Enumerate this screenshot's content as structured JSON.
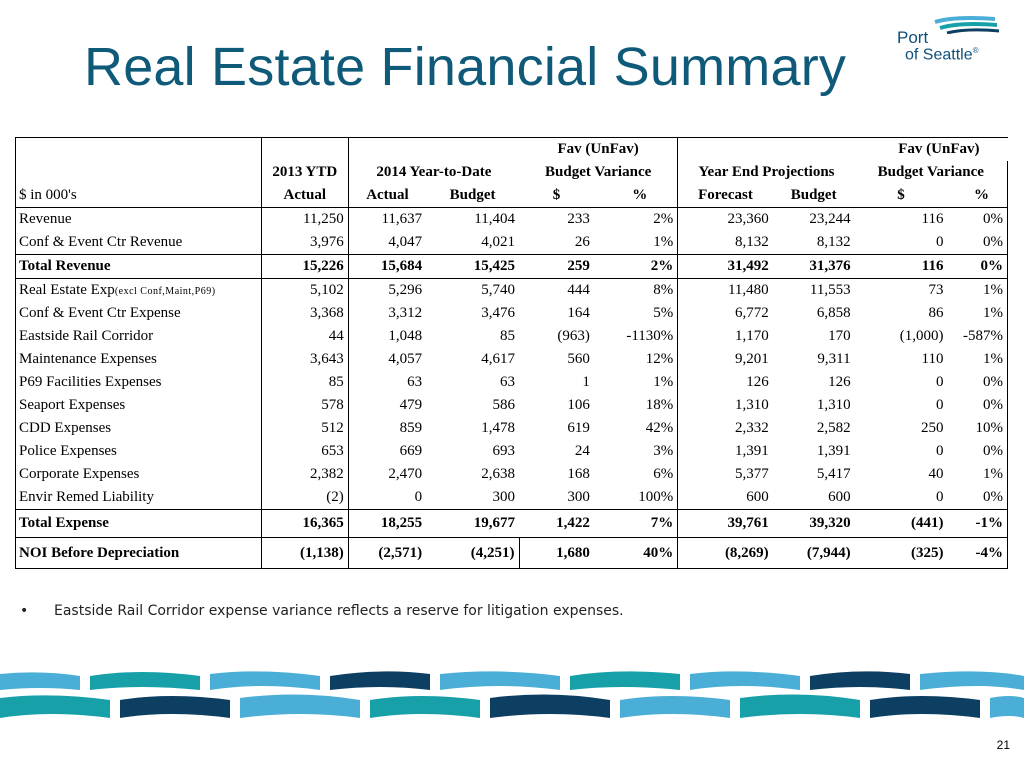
{
  "slide": {
    "title": "Real Estate Financial Summary",
    "page_number": "21",
    "bullet": "Eastside Rail Corridor expense variance reflects a reserve for litigation expenses."
  },
  "logo": {
    "line1": "Port",
    "line2": "of Seattle",
    "mark": "®"
  },
  "colors": {
    "title": "#0f5a78",
    "logo": "#0f4f7a",
    "wave_light": "#4baed6",
    "wave_teal": "#17a0a8",
    "wave_dark": "#0d3f63"
  },
  "table": {
    "header": {
      "fav1": "Fav (UnFav)",
      "fav2": "Fav (UnFav)",
      "ytd2013": "2013 YTD",
      "ytd2014": "2014 Year-to-Date",
      "budget_variance1": "Budget Variance",
      "year_end": "Year End Projections",
      "budget_variance2": "Budget Variance",
      "units": "$ in 000's",
      "actual2013": "Actual",
      "actual2014": "Actual",
      "budget2014": "Budget",
      "dollar1": "$",
      "pct1": "%",
      "forecast": "Forecast",
      "budget_ye": "Budget",
      "dollar2": "$",
      "pct2": "%"
    },
    "rows": [
      {
        "label": "Revenue",
        "vals": [
          "11,250",
          "11,637",
          "11,404",
          "233",
          "2%",
          "23,360",
          "23,244",
          "116",
          "0%"
        ]
      },
      {
        "label": "Conf & Event Ctr Revenue",
        "vals": [
          "3,976",
          "4,047",
          "4,021",
          "26",
          "1%",
          "8,132",
          "8,132",
          "0",
          "0%"
        ]
      },
      {
        "label": "Total Revenue",
        "vals": [
          "15,226",
          "15,684",
          "15,425",
          "259",
          "2%",
          "31,492",
          "31,376",
          "116",
          "0%"
        ]
      },
      {
        "label": "Real Estate Exp",
        "label_small": "(excl Conf,Maint,P69)",
        "vals": [
          "5,102",
          "5,296",
          "5,740",
          "444",
          "8%",
          "11,480",
          "11,553",
          "73",
          "1%"
        ]
      },
      {
        "label": "Conf & Event Ctr Expense",
        "vals": [
          "3,368",
          "3,312",
          "3,476",
          "164",
          "5%",
          "6,772",
          "6,858",
          "86",
          "1%"
        ]
      },
      {
        "label": "Eastside Rail Corridor",
        "vals": [
          "44",
          "1,048",
          "85",
          "(963)",
          "-1130%",
          "1,170",
          "170",
          "(1,000)",
          "-587%"
        ]
      },
      {
        "label": "Maintenance Expenses",
        "vals": [
          "3,643",
          "4,057",
          "4,617",
          "560",
          "12%",
          "9,201",
          "9,311",
          "110",
          "1%"
        ]
      },
      {
        "label": "P69 Facilities Expenses",
        "vals": [
          "85",
          "63",
          "63",
          "1",
          "1%",
          "126",
          "126",
          "0",
          "0%"
        ]
      },
      {
        "label": "Seaport Expenses",
        "vals": [
          "578",
          "479",
          "586",
          "106",
          "18%",
          "1,310",
          "1,310",
          "0",
          "0%"
        ]
      },
      {
        "label": "CDD Expenses",
        "vals": [
          "512",
          "859",
          "1,478",
          "619",
          "42%",
          "2,332",
          "2,582",
          "250",
          "10%"
        ]
      },
      {
        "label": "Police Expenses",
        "vals": [
          "653",
          "669",
          "693",
          "24",
          "3%",
          "1,391",
          "1,391",
          "0",
          "0%"
        ]
      },
      {
        "label": "Corporate Expenses",
        "vals": [
          "2,382",
          "2,470",
          "2,638",
          "168",
          "6%",
          "5,377",
          "5,417",
          "40",
          "1%"
        ]
      },
      {
        "label": "Envir Remed Liability",
        "vals": [
          "(2)",
          "0",
          "300",
          "300",
          "100%",
          "600",
          "600",
          "0",
          "0%"
        ]
      },
      {
        "label": "Total Expense",
        "vals": [
          "16,365",
          "18,255",
          "19,677",
          "1,422",
          "7%",
          "39,761",
          "39,320",
          "(441)",
          "-1%"
        ]
      },
      {
        "label": "NOI Before Depreciation",
        "vals": [
          "(1,138)",
          "(2,571)",
          "(4,251)",
          "1,680",
          "40%",
          "(8,269)",
          "(7,944)",
          "(325)",
          "-4%"
        ]
      }
    ]
  }
}
